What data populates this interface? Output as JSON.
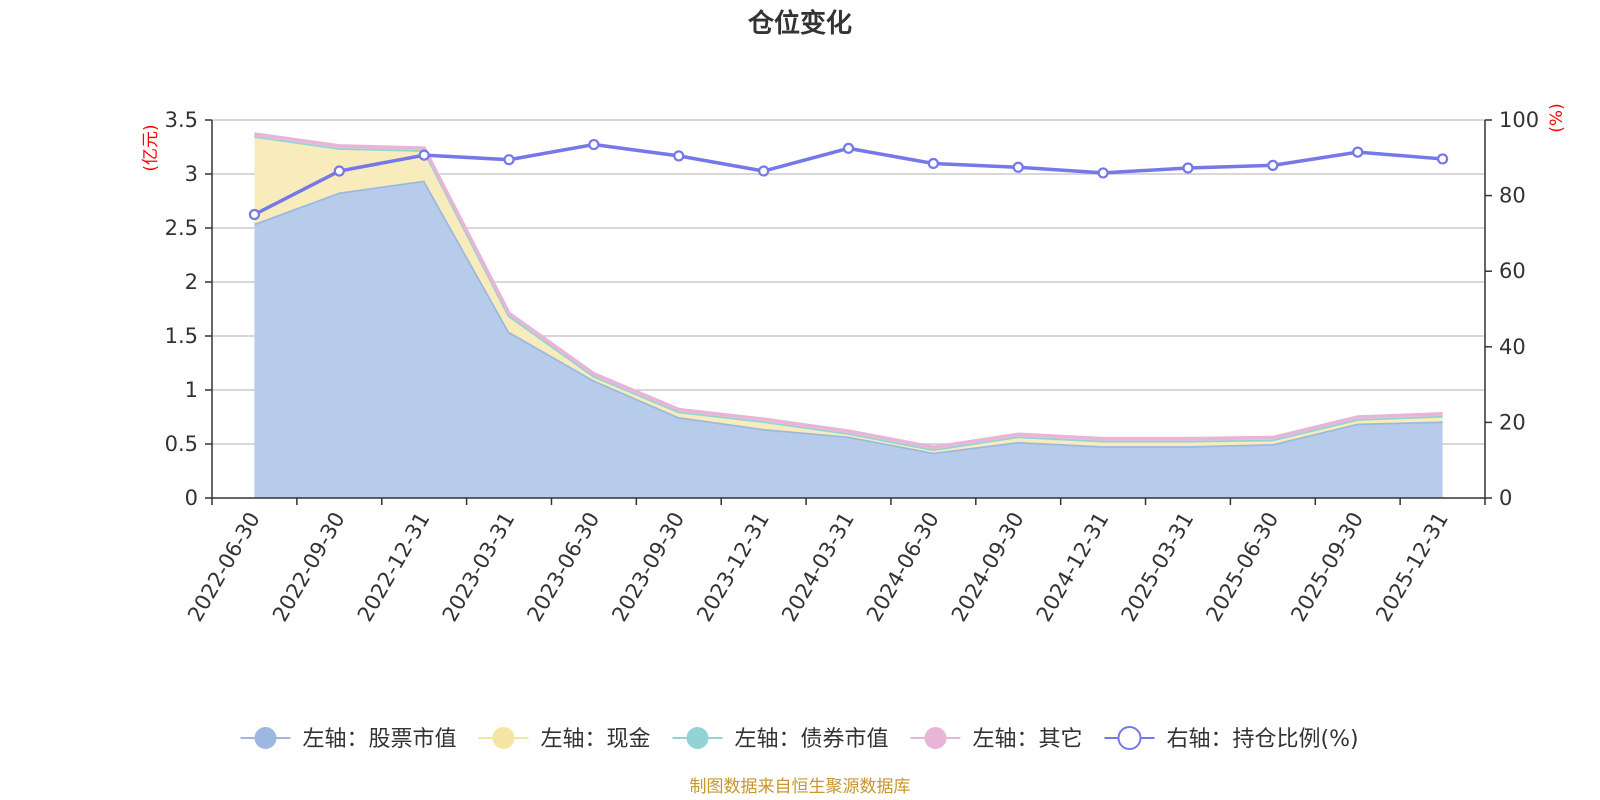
{
  "chart_data": {
    "type": "area",
    "title": "仓位变化",
    "source": "制图数据来自恒生聚源数据库",
    "left_axis": {
      "unit": "(亿元)",
      "ylim": [
        0,
        3.5
      ],
      "ticks": [
        "0",
        "0.5",
        "1",
        "1.5",
        "2",
        "2.5",
        "3",
        "3.5"
      ]
    },
    "right_axis": {
      "unit": "(%)",
      "ylim": [
        0,
        100
      ],
      "ticks": [
        "0",
        "20",
        "40",
        "60",
        "80",
        "100"
      ]
    },
    "categories": [
      "2022-06-30",
      "2022-09-30",
      "2022-12-31",
      "2023-03-31",
      "2023-06-30",
      "2023-09-30",
      "2023-12-31",
      "2024-03-31",
      "2024-06-30",
      "2024-09-30",
      "2024-12-31",
      "2025-03-31",
      "2025-06-30",
      "2025-09-30",
      "2025-12-31"
    ],
    "grid": true,
    "legend_position": "bottom",
    "series": [
      {
        "name": "左轴：股票市值",
        "axis": "left",
        "kind": "stacked-area",
        "color": "#9db8e0",
        "fill": "#b7cbea",
        "values": [
          2.54,
          2.83,
          2.94,
          1.54,
          1.09,
          0.75,
          0.64,
          0.57,
          0.42,
          0.52,
          0.48,
          0.48,
          0.5,
          0.69,
          0.71
        ]
      },
      {
        "name": "左轴：现金",
        "axis": "left",
        "kind": "stacked-area",
        "color": "#f5e4a4",
        "fill": "#f9ecbc",
        "values": [
          0.81,
          0.41,
          0.28,
          0.15,
          0.04,
          0.05,
          0.07,
          0.03,
          0.03,
          0.05,
          0.05,
          0.05,
          0.04,
          0.04,
          0.05
        ]
      },
      {
        "name": "左轴：债券市值",
        "axis": "left",
        "kind": "stacked-area",
        "color": "#92d4d4",
        "fill": "#a8dede",
        "values": [
          0,
          0,
          0,
          0,
          0,
          0,
          0,
          0,
          0,
          0,
          0,
          0,
          0,
          0,
          0
        ]
      },
      {
        "name": "左轴：其它",
        "axis": "left",
        "kind": "stacked-area",
        "color": "#e8b4d8",
        "fill": "#f0c8e2",
        "values": [
          0.02,
          0.02,
          0.02,
          0.02,
          0.02,
          0.02,
          0.02,
          0.02,
          0.02,
          0.02,
          0.02,
          0.02,
          0.02,
          0.02,
          0.02
        ]
      },
      {
        "name": "右轴：持仓比例(%)",
        "axis": "right",
        "kind": "line",
        "color": "#7478e8",
        "values": [
          75.0,
          86.5,
          90.7,
          89.5,
          93.5,
          90.5,
          86.5,
          92.5,
          88.5,
          87.5,
          86.0,
          87.3,
          88.0,
          91.5,
          89.7
        ]
      }
    ]
  }
}
